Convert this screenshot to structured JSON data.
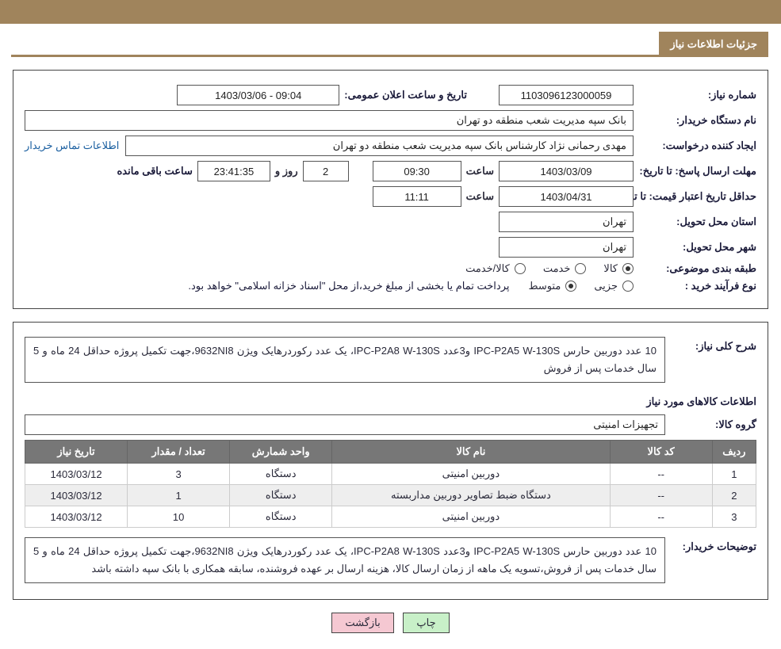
{
  "headerTab": "جزئیات اطلاعات نیاز",
  "panel1": {
    "needNoLabel": "شماره نیاز:",
    "needNo": "1103096123000059",
    "announceLabel": "تاریخ و ساعت اعلان عمومی:",
    "announceValue": "09:04 - 1403/03/06",
    "buyerOrgLabel": "نام دستگاه خریدار:",
    "buyerOrg": "بانک سپه مدیریت شعب منطقه دو تهران",
    "requesterLabel": "ایجاد کننده درخواست:",
    "requester": "مهدی رحمانی نژاد کارشناس بانک سپه مدیریت شعب منطقه دو تهران",
    "buyerContactLink": "اطلاعات تماس خریدار",
    "deadlineLabel": "مهلت ارسال پاسخ: تا تاریخ:",
    "deadlineDate": "1403/03/09",
    "hourWord": "ساعت",
    "deadlineTime": "09:30",
    "daysRemaining": "2",
    "daysWord": "روز و",
    "countdown": "23:41:35",
    "remainingWord": "ساعت باقی مانده",
    "validityLabel": "حداقل تاریخ اعتبار قیمت: تا تاریخ:",
    "validityDate": "1403/04/31",
    "validityTime": "11:11",
    "provinceLabel": "استان محل تحویل:",
    "province": "تهران",
    "cityLabel": "شهر محل تحویل:",
    "city": "تهران",
    "subjectClassLabel": "طبقه بندی موضوعی:",
    "classOptions": [
      "کالا",
      "خدمت",
      "کالا/خدمت"
    ],
    "classSelected": 0,
    "procTypeLabel": "نوع فرآیند خرید :",
    "procOptions": [
      "جزیی",
      "متوسط"
    ],
    "procSelected": 1,
    "procNote": "پرداخت تمام یا بخشی از مبلغ خرید،از محل \"اسناد خزانه اسلامی\" خواهد بود."
  },
  "panel2": {
    "overallLabel": "شرح کلی نیاز:",
    "overallDesc": "10 عدد دوربین حارس IPC-P2A5 W-130S و3عدد IPC-P2A8 W-130S، یک عدد رکوردرهایک ویژن 9632NI8،جهت تکمیل پروژه حداقل 24 ماه و 5 سال خدمات پس از فروش",
    "itemsHeader": "اطلاعات کالاهای مورد نیاز",
    "groupLabel": "گروه کالا:",
    "groupValue": "تجهیزات امنیتی",
    "columns": [
      "ردیف",
      "کد کالا",
      "نام کالا",
      "واحد شمارش",
      "تعداد / مقدار",
      "تاریخ نیاز"
    ],
    "colWidths": [
      "6%",
      "14%",
      "38%",
      "14%",
      "14%",
      "14%"
    ],
    "rows": [
      [
        "1",
        "--",
        "دوربین امنیتی",
        "دستگاه",
        "3",
        "1403/03/12"
      ],
      [
        "2",
        "--",
        "دستگاه ضبط تصاویر دوربین مداربسته",
        "دستگاه",
        "1",
        "1403/03/12"
      ],
      [
        "3",
        "--",
        "دوربین امنیتی",
        "دستگاه",
        "10",
        "1403/03/12"
      ]
    ],
    "buyerNotesLabel": "توضیحات خریدار:",
    "buyerNotes": "10 عدد دوربین حارس IPC-P2A5 W-130S و3عدد IPC-P2A8 W-130S، یک عدد رکوردرهایک ویژن 9632NI8،جهت تکمیل پروژه حداقل 24 ماه و 5 سال خدمات پس از فروش،تسویه یک ماهه از زمان ارسال کالا، هزینه ارسال بر عهده فروشنده، سابقه همکاری با بانک سپه داشته باشد"
  },
  "actions": {
    "print": "چاپ",
    "back": "بازگشت"
  },
  "colors": {
    "brand": "#a0845c",
    "tableHeader": "#777777",
    "altRow": "#eeeeee",
    "printBtn": "#c8f0c8",
    "backBtn": "#f5c8d2",
    "link": "#1a5fa0",
    "text": "#1b1b3a"
  }
}
